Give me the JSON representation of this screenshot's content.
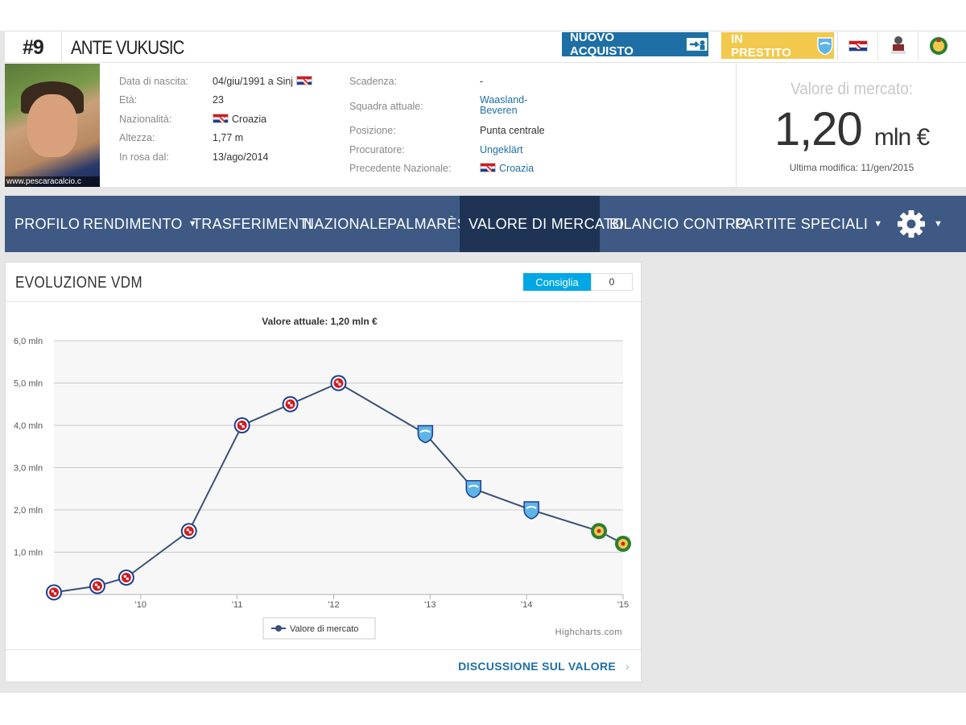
{
  "player": {
    "number": "#9",
    "name": "ANTE VUKUSIC",
    "photo_credit": "www.pescaracalcio.c"
  },
  "badges": {
    "new_signing": "NUOVO ACQUISTO",
    "on_loan": "IN PRESTITO"
  },
  "header_icons": [
    "croatia-flag-icon",
    "club-crest-icon",
    "club-badge-icon"
  ],
  "info_left": [
    {
      "label": "Data di nascita:",
      "value": "04/giu/1991 a Sinj"
    },
    {
      "label": "Età:",
      "value": "23"
    },
    {
      "label": "Nazionalità:",
      "value": "Croazia"
    },
    {
      "label": "Altezza:",
      "value": "1,77 m"
    },
    {
      "label": "In rosa dal:",
      "value": "13/ago/2014"
    }
  ],
  "info_right": [
    {
      "label": "Scadenza:",
      "value": "-"
    },
    {
      "label": "Squadra attuale:",
      "value": "Waasland-\nBeveren"
    },
    {
      "label": "Posizione:",
      "value": "Punta centrale"
    },
    {
      "label": "Procuratore:",
      "value": "Ungeklärt"
    },
    {
      "label": "Precedente Nazionale:",
      "value": "Croazia"
    }
  ],
  "market_value": {
    "label": "Valore di mercato:",
    "amount": "1,20",
    "unit": "mln €",
    "last_update": "Ultima modifica: 11/gen/2015"
  },
  "nav": {
    "items": [
      {
        "label": "PROFILO",
        "dropdown": false
      },
      {
        "label": "RENDIMENTO",
        "dropdown": true
      },
      {
        "label": "TRASFERIMENTI",
        "dropdown": false
      },
      {
        "label": "NAZIONALE",
        "dropdown": false
      },
      {
        "label": "PALMARÈS",
        "dropdown": false
      },
      {
        "label": "VALORE DI MERCATO",
        "dropdown": false,
        "active": true
      },
      {
        "label": "BILANCIO CONTRO",
        "dropdown": false
      },
      {
        "label": "PARTITE SPECIALI",
        "dropdown": true
      }
    ],
    "settings_icon": "gear-icon"
  },
  "card": {
    "title": "EVOLUZIONE VDM",
    "consiglia_label": "Consiglia",
    "consiglia_count": "0",
    "footer_link": "DISCUSSIONE SUL VALORE",
    "credit": "Highcharts.com"
  },
  "colors": {
    "nav_bg": "#3e5a84",
    "nav_active": "#1f3454",
    "link": "#1d6fa5",
    "loan_badge": "#f2c94c",
    "line": "#3a5075"
  },
  "chart_data": {
    "type": "line",
    "title": "Valore attuale: 1,20 mln €",
    "y_tick_labels": [
      "6,0 mln",
      "5,0 mln",
      "4,0 mln",
      "3,0 mln",
      "2,0 mln",
      "1,0 mln"
    ],
    "x_tick_labels": [
      "'10",
      "'11",
      "'12",
      "'13",
      "'14",
      "'15"
    ],
    "x_ticks": [
      2010,
      2011,
      2012,
      2013,
      2014,
      2015
    ],
    "ylim": [
      0,
      6
    ],
    "xlim": [
      2009.1,
      2015.0
    ],
    "grid": true,
    "legend_position": "bottom-center",
    "series": [
      {
        "name": "Valore di mercato",
        "x": [
          2009.1,
          2009.55,
          2009.85,
          2010.5,
          2011.05,
          2011.55,
          2012.05,
          2012.95,
          2013.45,
          2014.05,
          2014.75,
          2015.0
        ],
        "y": [
          0.05,
          0.2,
          0.4,
          1.5,
          4.0,
          4.5,
          5.0,
          3.8,
          2.5,
          2.0,
          1.5,
          1.2
        ],
        "club": [
          "hajduk",
          "hajduk",
          "hajduk",
          "hajduk",
          "hajduk",
          "hajduk",
          "hajduk",
          "pescara",
          "pescara",
          "pescara",
          "waasland",
          "waasland"
        ]
      }
    ]
  }
}
